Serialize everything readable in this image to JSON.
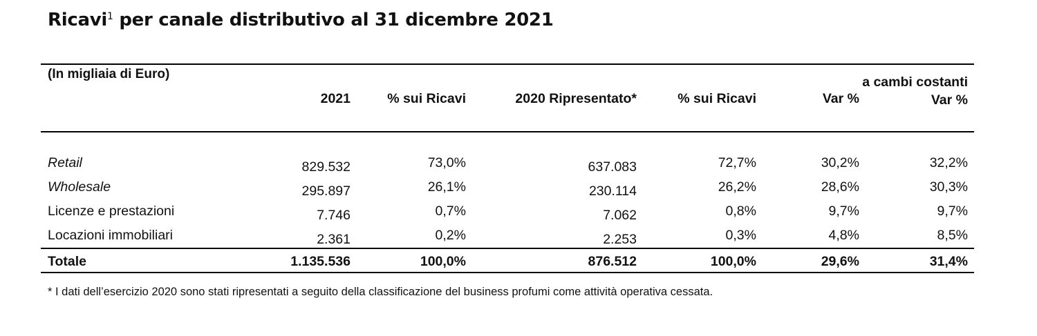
{
  "title": {
    "text": "Ricavi",
    "footnote_marker": "1",
    "rest": " per canale distributivo al 31 dicembre 2021"
  },
  "table": {
    "unit_label": "(In migliaia di Euro)",
    "headers": {
      "y2021": "2021",
      "pct2021": "% sui Ricavi",
      "y2020": "2020 Ripresentato*",
      "pct2020": "% sui Ricavi",
      "var": "Var %",
      "var_cc": "a cambi costanti Var %"
    },
    "rows": [
      {
        "label": "Retail",
        "y2021": "829.532",
        "pct2021": "73,0%",
        "y2020": "637.083",
        "pct2020": "72,7%",
        "var": "30,2%",
        "var_cc": "32,2%"
      },
      {
        "label": "Wholesale",
        "y2021": "295.897",
        "pct2021": "26,1%",
        "y2020": "230.114",
        "pct2020": "26,2%",
        "var": "28,6%",
        "var_cc": "30,3%"
      },
      {
        "label": "Licenze e prestazioni",
        "y2021": "7.746",
        "pct2021": "0,7%",
        "y2020": "7.062",
        "pct2020": "0,8%",
        "var": "9,7%",
        "var_cc": "9,7%"
      },
      {
        "label": "Locazioni immobiliari",
        "y2021": "2.361",
        "pct2021": "0,2%",
        "y2020": "2.253",
        "pct2020": "0,3%",
        "var": "4,8%",
        "var_cc": "8,5%"
      }
    ],
    "total": {
      "label": "Totale",
      "y2021": "1.135.536",
      "pct2021": "100,0%",
      "y2020": "876.512",
      "pct2020": "100,0%",
      "var": "29,6%",
      "var_cc": "31,4%"
    }
  },
  "footnote": "* I dati dell’esercizio 2020 sono stati ripresentati a seguito della classificazione del business profumi come attività operativa cessata."
}
